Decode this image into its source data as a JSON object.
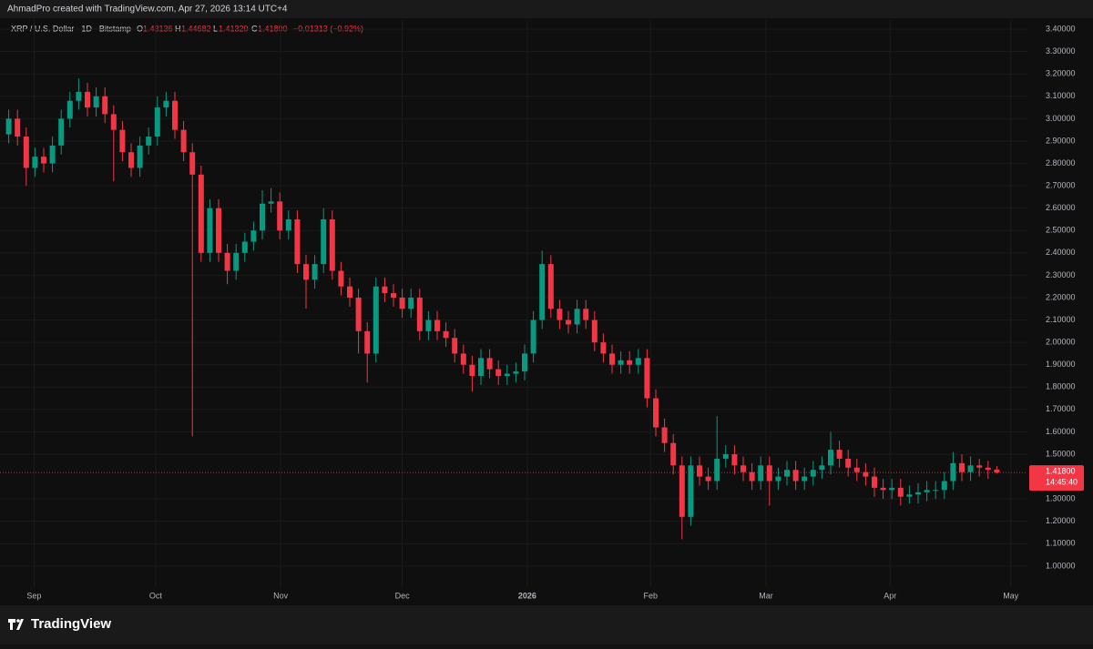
{
  "header": {
    "text": "AhmadPro created with TradingView.com, Apr 27, 2026 13:14 UTC+4"
  },
  "footer": {
    "brand": "TradingView"
  },
  "chart_data": {
    "type": "candlestick",
    "title": "XRP / U.S. Dollar · 1D · Bitstamp",
    "ohlc_legend": {
      "o_key": "O",
      "o": "1.43136",
      "h_key": "H",
      "h": "1.44682",
      "l_key": "L",
      "l": "1.41320",
      "c_key": "C",
      "c": "1.41800",
      "change": "−0.01313 (−0.92%)"
    },
    "last_price_label": "1.41800",
    "countdown": "14:45:40",
    "up_color": "#089981",
    "down_color": "#f23645",
    "grid": true,
    "open": [
      2.93,
      3.0,
      2.92,
      2.78,
      2.83,
      2.8,
      2.88,
      3.0,
      3.08,
      3.12,
      3.05,
      3.1,
      3.02,
      2.95,
      2.85,
      2.78,
      2.88,
      2.92,
      3.05,
      3.08,
      2.95,
      2.85,
      2.75,
      2.4,
      2.6,
      2.4,
      2.32,
      2.4,
      2.45,
      2.5,
      2.62,
      2.63,
      2.5,
      2.55,
      2.35,
      2.28,
      2.35,
      2.55,
      2.32,
      2.25,
      2.2,
      2.05,
      1.95,
      2.25,
      2.22,
      2.2,
      2.15,
      2.2,
      2.05,
      2.1,
      2.05,
      2.02,
      1.95,
      1.9,
      1.85,
      1.93,
      1.88,
      1.85,
      1.86,
      1.87,
      1.95,
      2.1,
      2.35,
      2.15,
      2.1,
      2.08,
      2.15,
      2.1,
      2.0,
      1.95,
      1.9,
      1.92,
      1.9,
      1.93,
      1.75,
      1.62,
      1.55,
      1.45,
      1.22,
      1.45,
      1.4,
      1.38,
      1.48,
      1.5,
      1.45,
      1.42,
      1.38,
      1.45,
      1.38,
      1.4,
      1.43,
      1.38,
      1.4,
      1.43,
      1.45,
      1.52,
      1.48,
      1.44,
      1.42,
      1.4,
      1.35,
      1.34,
      1.35,
      1.31,
      1.32,
      1.33,
      1.34,
      1.34,
      1.38,
      1.46,
      1.42,
      1.45,
      1.44,
      1.43136
    ],
    "high": [
      3.04,
      3.04,
      2.96,
      2.87,
      2.87,
      2.92,
      3.04,
      3.12,
      3.18,
      3.16,
      3.14,
      3.14,
      3.06,
      2.99,
      2.89,
      2.92,
      2.96,
      3.1,
      3.12,
      3.12,
      2.99,
      2.89,
      2.79,
      2.64,
      2.64,
      2.44,
      2.44,
      2.49,
      2.54,
      2.68,
      2.69,
      2.67,
      2.59,
      2.59,
      2.39,
      2.39,
      2.6,
      2.59,
      2.36,
      2.29,
      2.24,
      2.09,
      2.29,
      2.29,
      2.26,
      2.24,
      2.24,
      2.24,
      2.14,
      2.14,
      2.09,
      2.06,
      1.99,
      1.94,
      1.97,
      1.97,
      1.92,
      1.9,
      1.91,
      1.99,
      2.14,
      2.41,
      2.39,
      2.19,
      2.14,
      2.19,
      2.19,
      2.14,
      2.04,
      1.99,
      1.96,
      1.96,
      1.97,
      1.97,
      1.79,
      1.66,
      1.59,
      1.49,
      1.49,
      1.49,
      1.44,
      1.67,
      1.54,
      1.54,
      1.49,
      1.46,
      1.49,
      1.49,
      1.44,
      1.47,
      1.47,
      1.44,
      1.47,
      1.49,
      1.6,
      1.56,
      1.52,
      1.48,
      1.46,
      1.44,
      1.39,
      1.39,
      1.39,
      1.36,
      1.37,
      1.38,
      1.38,
      1.42,
      1.51,
      1.5,
      1.49,
      1.48,
      1.47,
      1.44682
    ],
    "low": [
      2.89,
      2.88,
      2.7,
      2.74,
      2.76,
      2.76,
      2.84,
      2.96,
      3.04,
      3.01,
      3.01,
      2.98,
      2.72,
      2.81,
      2.74,
      2.74,
      2.84,
      2.88,
      3.01,
      2.91,
      2.81,
      1.58,
      2.36,
      2.36,
      2.36,
      2.26,
      2.28,
      2.36,
      2.41,
      2.46,
      2.58,
      2.46,
      2.46,
      2.31,
      2.15,
      2.24,
      2.31,
      2.28,
      2.21,
      2.16,
      1.95,
      1.82,
      1.91,
      2.18,
      2.16,
      2.11,
      2.11,
      2.01,
      2.01,
      2.01,
      1.98,
      1.91,
      1.86,
      1.78,
      1.81,
      1.84,
      1.81,
      1.81,
      1.82,
      1.83,
      1.91,
      2.06,
      2.11,
      2.06,
      2.04,
      2.04,
      2.06,
      1.96,
      1.91,
      1.86,
      1.86,
      1.86,
      1.86,
      1.71,
      1.58,
      1.51,
      1.41,
      1.12,
      1.18,
      1.36,
      1.34,
      1.34,
      1.44,
      1.41,
      1.38,
      1.34,
      1.34,
      1.27,
      1.34,
      1.36,
      1.34,
      1.34,
      1.36,
      1.39,
      1.41,
      1.44,
      1.4,
      1.38,
      1.36,
      1.31,
      1.3,
      1.3,
      1.27,
      1.28,
      1.28,
      1.29,
      1.3,
      1.3,
      1.34,
      1.38,
      1.38,
      1.4,
      1.39,
      1.4132
    ],
    "close": [
      3.0,
      2.92,
      2.78,
      2.83,
      2.8,
      2.88,
      3.0,
      3.08,
      3.12,
      3.05,
      3.1,
      3.02,
      2.95,
      2.85,
      2.78,
      2.88,
      2.92,
      3.05,
      3.08,
      2.95,
      2.85,
      2.75,
      2.4,
      2.6,
      2.4,
      2.32,
      2.4,
      2.45,
      2.5,
      2.62,
      2.63,
      2.5,
      2.55,
      2.35,
      2.28,
      2.35,
      2.55,
      2.32,
      2.25,
      2.2,
      2.05,
      1.95,
      2.25,
      2.22,
      2.2,
      2.15,
      2.2,
      2.05,
      2.1,
      2.05,
      2.02,
      1.95,
      1.9,
      1.85,
      1.93,
      1.88,
      1.85,
      1.86,
      1.87,
      1.95,
      2.1,
      2.35,
      2.15,
      2.1,
      2.08,
      2.15,
      2.1,
      2.0,
      1.95,
      1.9,
      1.92,
      1.9,
      1.93,
      1.75,
      1.62,
      1.55,
      1.45,
      1.22,
      1.45,
      1.4,
      1.38,
      1.48,
      1.5,
      1.45,
      1.42,
      1.38,
      1.45,
      1.38,
      1.4,
      1.43,
      1.38,
      1.4,
      1.43,
      1.45,
      1.52,
      1.48,
      1.44,
      1.42,
      1.4,
      1.35,
      1.34,
      1.35,
      1.31,
      1.32,
      1.33,
      1.34,
      1.34,
      1.38,
      1.46,
      1.42,
      1.45,
      1.44,
      1.43,
      1.418
    ],
    "xlim": [
      -1,
      116.5
    ],
    "xticks": [
      {
        "value": 2.9,
        "label": "Sep"
      },
      {
        "value": 16.8,
        "label": "Oct"
      },
      {
        "value": 31.1,
        "label": "Nov"
      },
      {
        "value": 45,
        "label": "Dec"
      },
      {
        "value": 59.3,
        "label": "2026"
      },
      {
        "value": 73.4,
        "label": "Feb"
      },
      {
        "value": 86.6,
        "label": "Mar"
      },
      {
        "value": 100.8,
        "label": "Apr"
      },
      {
        "value": 114.6,
        "label": "May"
      }
    ],
    "ylim": [
      0.906,
      3.441
    ],
    "yticks": [
      {
        "value": 1.0,
        "label": "1.00000"
      },
      {
        "value": 1.1,
        "label": "1.10000"
      },
      {
        "value": 1.2,
        "label": "1.20000"
      },
      {
        "value": 1.3,
        "label": "1.30000"
      },
      {
        "value": 1.5,
        "label": "1.50000"
      },
      {
        "value": 1.6,
        "label": "1.60000"
      },
      {
        "value": 1.7,
        "label": "1.70000"
      },
      {
        "value": 1.8,
        "label": "1.80000"
      },
      {
        "value": 1.9,
        "label": "1.90000"
      },
      {
        "value": 2.0,
        "label": "2.00000"
      },
      {
        "value": 2.1,
        "label": "2.10000"
      },
      {
        "value": 2.2,
        "label": "2.20000"
      },
      {
        "value": 2.3,
        "label": "2.30000"
      },
      {
        "value": 2.4,
        "label": "2.40000"
      },
      {
        "value": 2.5,
        "label": "2.50000"
      },
      {
        "value": 2.6,
        "label": "2.60000"
      },
      {
        "value": 2.7,
        "label": "2.70000"
      },
      {
        "value": 2.8,
        "label": "2.80000"
      },
      {
        "value": 2.9,
        "label": "2.90000"
      },
      {
        "value": 3.0,
        "label": "3.00000"
      },
      {
        "value": 3.1,
        "label": "3.10000"
      },
      {
        "value": 3.2,
        "label": "3.20000"
      },
      {
        "value": 3.3,
        "label": "3.30000"
      },
      {
        "value": 3.4,
        "label": "3.40000"
      }
    ]
  }
}
